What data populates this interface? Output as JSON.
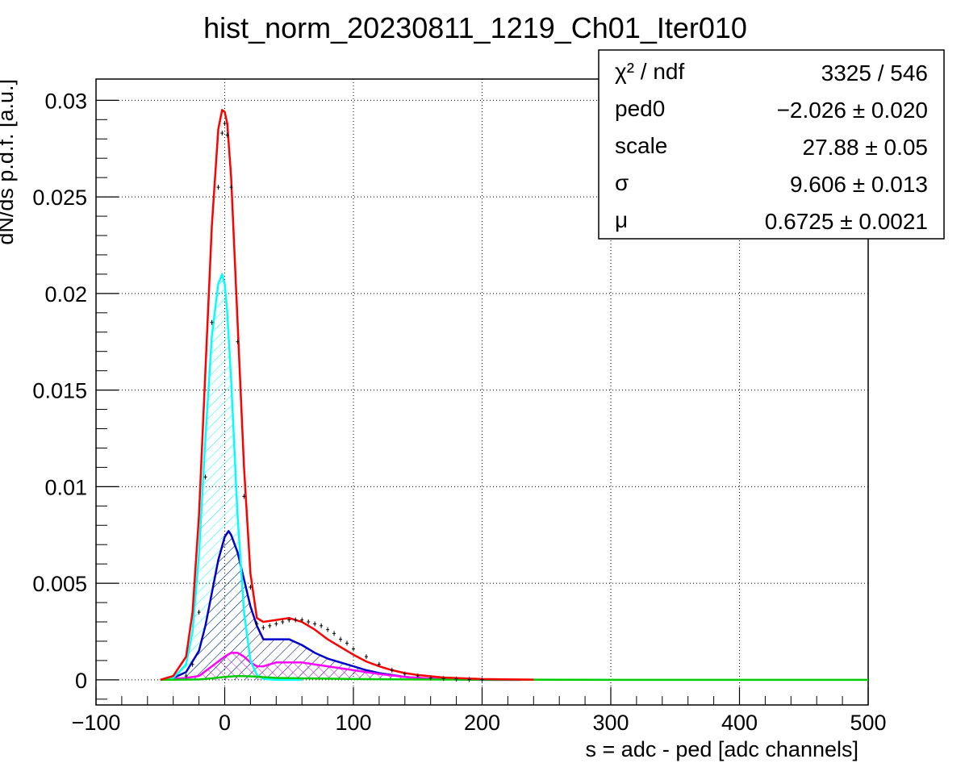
{
  "chart_data": {
    "type": "line",
    "title": "hist_norm_20230811_1219_Ch01_Iter010",
    "xlabel": "s = adc - ped [adc channels]",
    "ylabel": "dN/ds p.d.f. [a.u.]",
    "xlim": [
      -100,
      500
    ],
    "ylim": [
      -0.0013,
      0.0311
    ],
    "x_ticks": [
      -100,
      0,
      100,
      200,
      300,
      400,
      500
    ],
    "x_tick_labels": [
      "−100",
      "0",
      "100",
      "200",
      "300",
      "400",
      "500"
    ],
    "y_ticks": [
      0,
      0.005,
      0.01,
      0.015,
      0.02,
      0.025,
      0.03
    ],
    "y_tick_labels": [
      "0",
      "0.005",
      "0.01",
      "0.015",
      "0.02",
      "0.025",
      "0.03"
    ],
    "grid": true,
    "legend_position": "top-right",
    "stats": [
      {
        "label": "χ² / ndf",
        "value": "3325 / 546"
      },
      {
        "label": "ped0",
        "value": "−2.026 ± 0.020"
      },
      {
        "label": "scale",
        "value": "27.88 ± 0.05"
      },
      {
        "label": "σ",
        "value": "9.606 ± 0.013"
      },
      {
        "label": "μ",
        "value": "0.6725 ± 0.0021"
      }
    ],
    "data_points": {
      "color": "#000000",
      "x": [
        -30,
        -25,
        -20,
        -15,
        -10,
        -5,
        -2,
        0,
        2,
        5,
        10,
        15,
        20,
        25,
        30,
        35,
        40,
        45,
        50,
        55,
        60,
        65,
        70,
        75,
        80,
        85,
        90,
        95,
        100,
        110,
        120,
        130,
        140,
        150,
        160,
        170,
        180,
        190,
        200
      ],
      "y": [
        0.0002,
        0.0008,
        0.0035,
        0.0105,
        0.0185,
        0.0255,
        0.0283,
        0.0288,
        0.0282,
        0.0255,
        0.0175,
        0.0095,
        0.0048,
        0.0029,
        0.0027,
        0.0028,
        0.0029,
        0.003,
        0.0031,
        0.0031,
        0.0031,
        0.003,
        0.0029,
        0.0028,
        0.0026,
        0.0024,
        0.0021,
        0.0019,
        0.0016,
        0.0012,
        0.0008,
        0.0005,
        0.0003,
        0.0002,
        0.0001,
        7e-05,
        4e-05,
        2e-05,
        1e-05
      ]
    },
    "series": [
      {
        "color": "#ff0000",
        "hatch": false,
        "x": [
          -50,
          -40,
          -30,
          -25,
          -20,
          -15,
          -10,
          -5,
          -2,
          0,
          2,
          5,
          10,
          15,
          20,
          25,
          30,
          40,
          50,
          60,
          70,
          80,
          90,
          100,
          110,
          120,
          130,
          140,
          150,
          170,
          200,
          240
        ],
        "y": [
          0.0,
          0.0002,
          0.0012,
          0.0035,
          0.0085,
          0.016,
          0.0235,
          0.0285,
          0.0295,
          0.0294,
          0.0288,
          0.026,
          0.0185,
          0.011,
          0.0055,
          0.0032,
          0.003,
          0.0031,
          0.0032,
          0.003,
          0.0026,
          0.0021,
          0.0017,
          0.0013,
          0.00095,
          0.0007,
          0.0005,
          0.00035,
          0.00025,
          0.00012,
          4e-05,
          1e-05
        ]
      },
      {
        "color": "#00ffff",
        "hatch": true,
        "x": [
          -50,
          -40,
          -30,
          -25,
          -20,
          -15,
          -10,
          -5,
          -2,
          0,
          2,
          5,
          10,
          15,
          20,
          25,
          30,
          40,
          50,
          60
        ],
        "y": [
          0.0,
          0.0001,
          0.0008,
          0.0025,
          0.0065,
          0.0125,
          0.0178,
          0.0205,
          0.021,
          0.0205,
          0.019,
          0.0155,
          0.0085,
          0.0035,
          0.001,
          0.00025,
          5e-05,
          0.0,
          0.0,
          0.0
        ]
      },
      {
        "color": "#0000cc",
        "hatch": true,
        "x": [
          -50,
          -40,
          -30,
          -20,
          -15,
          -10,
          -5,
          0,
          3,
          5,
          10,
          15,
          20,
          25,
          30,
          40,
          50,
          60,
          70,
          80,
          90,
          100,
          110,
          120,
          130,
          140,
          160,
          180,
          200,
          230
        ],
        "y": [
          0.0,
          0.0001,
          0.0004,
          0.0015,
          0.0028,
          0.0045,
          0.0062,
          0.0074,
          0.0077,
          0.0075,
          0.0066,
          0.0052,
          0.0038,
          0.0028,
          0.0021,
          0.0021,
          0.0021,
          0.0018,
          0.0014,
          0.0011,
          0.0009,
          0.0007,
          0.0005,
          0.00035,
          0.00025,
          0.00015,
          6e-05,
          2e-05,
          0.0,
          0.0
        ]
      },
      {
        "color": "#ff00ff",
        "hatch": true,
        "x": [
          -50,
          -30,
          -20,
          -10,
          0,
          5,
          10,
          15,
          20,
          25,
          30,
          40,
          50,
          60,
          70,
          80,
          90,
          100,
          110,
          120,
          140,
          160,
          200
        ],
        "y": [
          0.0,
          0.0001,
          0.0002,
          0.0007,
          0.0012,
          0.0014,
          0.0014,
          0.0012,
          0.0009,
          0.0007,
          0.0007,
          0.0009,
          0.0009,
          0.0009,
          0.0008,
          0.0007,
          0.0006,
          0.0005,
          0.0004,
          0.0003,
          0.00015,
          6e-05,
          0.0
        ]
      },
      {
        "color": "#00cc00",
        "hatch": false,
        "x": [
          -50,
          -20,
          -10,
          0,
          10,
          20,
          30,
          40,
          60,
          80,
          100,
          150,
          200,
          300,
          400,
          500
        ],
        "y": [
          0.0,
          2e-05,
          8e-05,
          0.00015,
          0.0002,
          0.00018,
          0.00014,
          0.0001,
          8e-05,
          6e-05,
          4e-05,
          2e-05,
          1e-05,
          0.0,
          0.0,
          0.0
        ]
      }
    ]
  }
}
